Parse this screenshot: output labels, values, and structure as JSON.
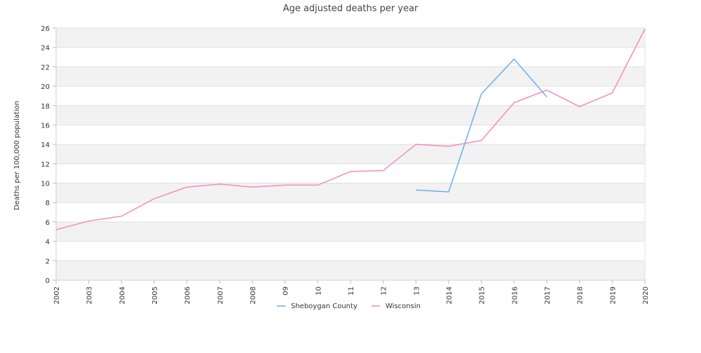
{
  "chart_data": {
    "type": "line",
    "title": "Age adjusted deaths per year",
    "ylabel": "Deaths per 100,000 population",
    "xlabel": "",
    "x": [
      "2002",
      "2003",
      "2004",
      "2005",
      "2006",
      "2007",
      "2008",
      "09",
      "10",
      "11",
      "12",
      "13",
      "2014",
      "2015",
      "2016",
      "2017",
      "2018",
      "2019",
      "2020"
    ],
    "ylim": [
      0,
      26
    ],
    "yticks": [
      0,
      2,
      4,
      6,
      8,
      10,
      12,
      14,
      16,
      18,
      20,
      22,
      24,
      26
    ],
    "grid": "horizontal alternating bands",
    "legend_position": "bottom",
    "series": [
      {
        "name": "Sheboygan County",
        "color": "#6aaef0",
        "values": [
          null,
          null,
          null,
          null,
          null,
          null,
          null,
          null,
          null,
          null,
          null,
          9.3,
          9.1,
          19.2,
          22.8,
          18.9,
          null,
          null,
          null
        ]
      },
      {
        "name": "Wisconsin",
        "color": "#f28bc2",
        "values": [
          5.2,
          6.1,
          6.6,
          8.4,
          9.6,
          9.9,
          9.6,
          9.8,
          9.8,
          11.2,
          11.3,
          14.0,
          13.8,
          14.4,
          18.3,
          19.6,
          17.9,
          19.3,
          25.9
        ]
      }
    ]
  }
}
